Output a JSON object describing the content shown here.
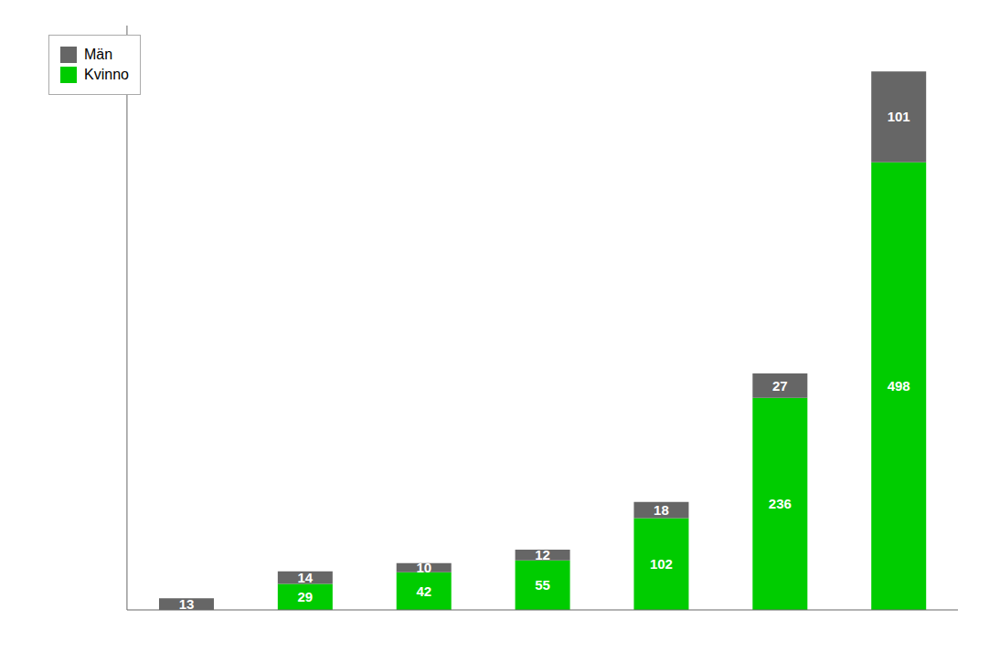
{
  "chart_data": {
    "type": "bar",
    "stacked": true,
    "categories": [
      null,
      null,
      null,
      null,
      null,
      null,
      null
    ],
    "series": [
      {
        "name": "Kvinno",
        "color": "#00cc00",
        "values": [
          0,
          29,
          42,
          55,
          102,
          236,
          498
        ]
      },
      {
        "name": "Män",
        "color": "#666666",
        "values": [
          13,
          14,
          10,
          12,
          18,
          27,
          101
        ]
      }
    ],
    "ylim": [
      0,
      650
    ],
    "yticks": [],
    "grid": false,
    "legend": "upper left",
    "data_labels": true,
    "tick_labels": false
  }
}
